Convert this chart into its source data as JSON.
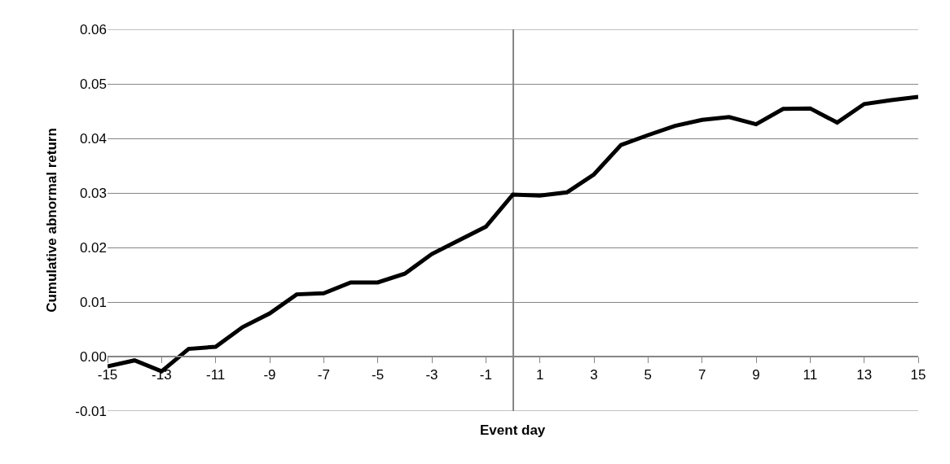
{
  "chart_data": {
    "type": "line",
    "xlabel": "Event day",
    "ylabel": "Cumulative abnormal return",
    "x": [
      -15,
      -14,
      -13,
      -12,
      -11,
      -10,
      -9,
      -8,
      -7,
      -6,
      -5,
      -4,
      -3,
      -2,
      -1,
      0,
      1,
      2,
      3,
      4,
      5,
      6,
      7,
      8,
      9,
      10,
      11,
      12,
      13,
      14,
      15
    ],
    "series": [
      {
        "color": "#000000",
        "values": [
          -0.0018,
          -0.0007,
          -0.0027,
          0.0014,
          0.0018,
          0.0054,
          0.0079,
          0.0114,
          0.0116,
          0.0136,
          0.0136,
          0.0152,
          0.0188,
          0.0213,
          0.0238,
          0.0297,
          0.0295,
          0.0301,
          0.0334,
          0.0388,
          0.0406,
          0.0423,
          0.0434,
          0.0439,
          0.0426,
          0.0454,
          0.0455,
          0.0429,
          0.0463,
          0.047,
          0.0476
        ]
      }
    ],
    "xlim": [
      -15,
      15
    ],
    "xticks": [
      -15,
      -13,
      -11,
      -9,
      -7,
      -5,
      -3,
      -1,
      1,
      3,
      5,
      7,
      9,
      11,
      13,
      15
    ],
    "ylim": [
      -0.01,
      0.06
    ],
    "yticks": [
      {
        "value": -0.01,
        "label": "-0.01"
      },
      {
        "value": 0,
        "label": "0.00"
      },
      {
        "value": 0.01,
        "label": "0.01"
      },
      {
        "value": 0.02,
        "label": "0.02"
      },
      {
        "value": 0.03,
        "label": "0.03"
      },
      {
        "value": 0.04,
        "label": "0.04"
      },
      {
        "value": 0.05,
        "label": "0.05"
      },
      {
        "value": 0.06,
        "label": "0.06"
      }
    ],
    "grid": "y",
    "marker": "none",
    "line_style": "solid"
  }
}
